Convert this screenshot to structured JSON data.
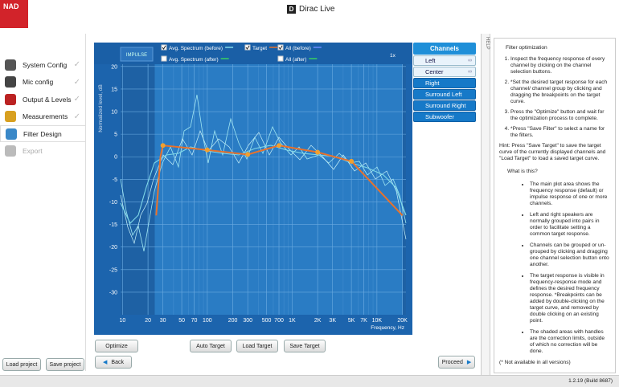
{
  "app": {
    "logo": "NAD",
    "title": "Dirac Live",
    "version": "1.2.19 (Build 8687)",
    "help_tab": "HELP"
  },
  "sidebar": {
    "items": [
      "System Config",
      "Mic config",
      "Output & Levels",
      "Measurements",
      "Filter Design",
      "Export"
    ],
    "load": "Load project",
    "save": "Save project"
  },
  "plot": {
    "impulse": "IMPULSE",
    "checkboxes": [
      {
        "label": "Avg. Spectrum (before)",
        "checked": true,
        "color": "#7fd8e8"
      },
      {
        "label": "Target",
        "checked": true,
        "color": "#e8722c"
      },
      {
        "label": "All (before)",
        "checked": true,
        "color": "#6a8cff"
      },
      {
        "label": "Avg. Spectrum (after)",
        "checked": false,
        "color": "#39d160"
      },
      {
        "label": "All (after)",
        "checked": false,
        "color": "#39d160"
      }
    ],
    "zoom": "1x",
    "ylabel": "Normalized level, dB",
    "xlabel": "Frequency, Hz",
    "log_x": true,
    "grid": true,
    "xlim": [
      9.5,
      22000
    ],
    "ylim": [
      -35,
      20.5
    ],
    "xticks": [
      10,
      20,
      30,
      50,
      70,
      100,
      200,
      300,
      500,
      700,
      {
        "value": 1000,
        "label": "1K"
      },
      {
        "value": 2000,
        "label": "2K"
      },
      {
        "value": 3000,
        "label": "3K"
      },
      {
        "value": 5000,
        "label": "5K"
      },
      {
        "value": 7000,
        "label": "7K"
      },
      {
        "value": 10000,
        "label": "10K"
      },
      {
        "value": 20000,
        "label": "20K"
      }
    ],
    "yticks": [
      20,
      15,
      10,
      5,
      0,
      -5,
      -10,
      -15,
      -20,
      -25,
      -30
    ],
    "target": {
      "color": "#e8722c",
      "x": [
        25,
        28,
        30,
        100,
        300,
        700,
        2000,
        5000,
        20000
      ],
      "y": [
        -13,
        0,
        2.5,
        1.5,
        0.5,
        2.5,
        1,
        -1,
        -13
      ]
    },
    "breakpoints": {
      "color": "#f0a030",
      "x": [
        30,
        100,
        300,
        700,
        2000,
        5000
      ],
      "y": [
        2.5,
        1.5,
        0.5,
        2.5,
        1,
        -1
      ]
    }
  },
  "buttons": {
    "optimize": "Optimize",
    "auto_target": "Auto Target",
    "load_target": "Load Target",
    "save_target": "Save Target",
    "back": "Back",
    "proceed": "Proceed"
  },
  "channels": {
    "title": "Channels",
    "items": [
      {
        "label": "Left",
        "selected": true
      },
      {
        "label": "Center",
        "selected": true
      },
      {
        "label": "Right",
        "selected": false
      },
      {
        "label": "Surround Left",
        "selected": false
      },
      {
        "label": "Surround Right",
        "selected": false
      },
      {
        "label": "Subwoofer",
        "selected": false
      }
    ]
  },
  "help": {
    "title": "Filter optimization",
    "steps": [
      "Inspect the frequency response of every channel by clicking on the channel selection buttons.",
      "*Set the desired target response for each channel/ channel group by clicking and dragging the breakpoints on the target curve.",
      "Press the \"Optimize\" button and wait for the optimization process to complete.",
      "*Press \"Save Filter\" to select a name for the filters."
    ],
    "hint": "Hint: Press \"Save Target\" to save the target curve of the currently displayed channels and \"Load Target\" to load a saved target curve.",
    "what": "What is this?",
    "bullets": [
      "The main plot area shows the frequency response (default) or impulse response of one or more channels.",
      "Left and right speakers are normally grouped into pairs in order to facilitate setting a common target response.",
      "Channels can be grouped or un-grouped by clicking and dragging one channel selection button onto another.",
      "The target response is visible in frequency-response mode and defines the desired frequency response. *Breakpoints can be added by double-clicking on the target curve, and removed by double clicking on an existing point.",
      "The shaded areas with handles are the correction limits, outside of which no correction will be done."
    ],
    "note": "(* Not available in all versions)"
  }
}
